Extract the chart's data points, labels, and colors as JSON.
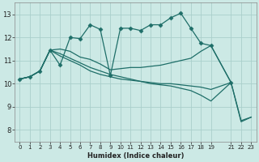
{
  "xlabel": "Humidex (Indice chaleur)",
  "bg_color": "#cce9e5",
  "grid_color": "#aacfcb",
  "line_color": "#1e6e68",
  "xlim": [
    -0.5,
    23.5
  ],
  "ylim": [
    7.5,
    13.5
  ],
  "xtick_positions": [
    0,
    1,
    2,
    3,
    4,
    5,
    6,
    7,
    8,
    9,
    10,
    11,
    12,
    13,
    14,
    15,
    16,
    17,
    18,
    19,
    21,
    22,
    23
  ],
  "xtick_labels": [
    "0",
    "1",
    "2",
    "3",
    "4",
    "5",
    "6",
    "7",
    "8",
    "9",
    "10",
    "11",
    "12",
    "13",
    "14",
    "15",
    "16",
    "17",
    "18",
    "19",
    "21",
    "22",
    "23"
  ],
  "yticks": [
    8,
    9,
    10,
    11,
    12,
    13
  ],
  "series": [
    {
      "x": [
        0,
        1,
        2,
        3,
        4,
        5,
        6,
        7,
        8,
        9,
        10,
        11,
        12,
        13,
        14,
        15,
        16,
        17,
        18,
        19,
        21
      ],
      "y": [
        10.2,
        10.3,
        10.55,
        11.45,
        10.8,
        12.0,
        11.95,
        12.55,
        12.35,
        10.35,
        12.4,
        12.4,
        12.3,
        12.55,
        12.55,
        12.85,
        13.05,
        12.4,
        11.75,
        11.65,
        10.05
      ],
      "has_marker": true
    },
    {
      "x": [
        0,
        1,
        2,
        3,
        4,
        5,
        6,
        7,
        8,
        9,
        10,
        11,
        12,
        13,
        14,
        15,
        16,
        17,
        18,
        19,
        21
      ],
      "y": [
        10.2,
        10.3,
        10.55,
        11.45,
        11.5,
        11.4,
        11.15,
        11.05,
        10.85,
        10.6,
        10.65,
        10.7,
        10.7,
        10.75,
        10.8,
        10.9,
        11.0,
        11.1,
        11.4,
        11.65,
        10.05
      ],
      "has_marker": false
    },
    {
      "x": [
        0,
        1,
        2,
        3,
        4,
        5,
        6,
        7,
        8,
        9,
        10,
        11,
        12,
        13,
        14,
        15,
        16,
        17,
        18,
        19,
        21,
        22,
        23
      ],
      "y": [
        10.2,
        10.3,
        10.55,
        11.45,
        11.2,
        11.0,
        10.8,
        10.55,
        10.4,
        10.3,
        10.2,
        10.15,
        10.1,
        10.05,
        10.0,
        10.0,
        9.95,
        9.9,
        9.85,
        9.75,
        10.05,
        8.4,
        8.55
      ],
      "has_marker": false
    },
    {
      "x": [
        0,
        1,
        2,
        3,
        4,
        5,
        6,
        7,
        8,
        9,
        10,
        11,
        12,
        13,
        14,
        15,
        16,
        17,
        18,
        19,
        21,
        22,
        23
      ],
      "y": [
        10.2,
        10.3,
        10.55,
        11.45,
        11.3,
        11.1,
        10.9,
        10.7,
        10.55,
        10.4,
        10.3,
        10.2,
        10.1,
        10.0,
        9.95,
        9.9,
        9.8,
        9.7,
        9.5,
        9.25,
        10.05,
        8.35,
        8.55
      ],
      "has_marker": false
    }
  ]
}
